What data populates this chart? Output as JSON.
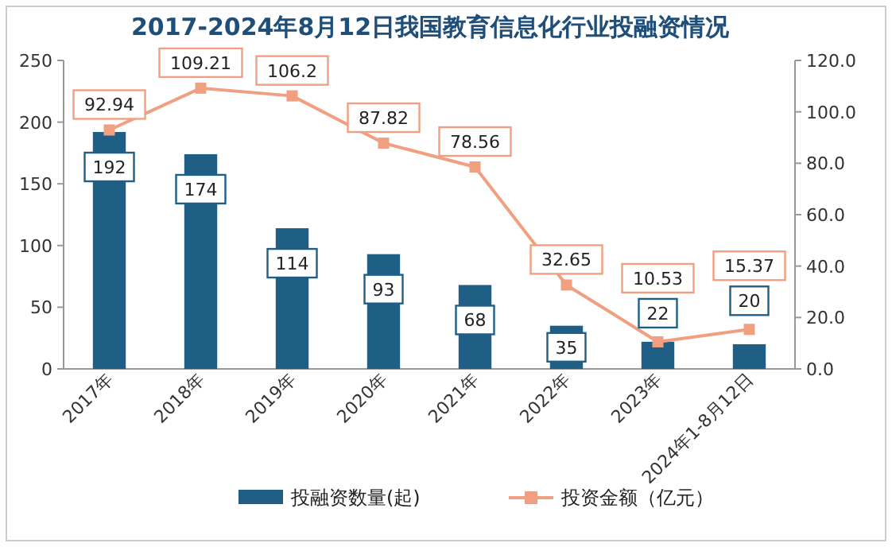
{
  "chart_data": {
    "type": "bar",
    "title": "2017-2024年8月12日我国教育信息化行业投融资情况",
    "categories": [
      "2017年",
      "2018年",
      "2019年",
      "2020年",
      "2021年",
      "2022年",
      "2023年",
      "2024年1-8月12日"
    ],
    "series": [
      {
        "name": "投融资数量(起)",
        "color": "#1f5f86",
        "values": [
          192,
          174,
          114,
          93,
          68,
          35,
          22,
          20
        ]
      },
      {
        "name": "投资金额（亿元）",
        "type": "line",
        "axis": "y2",
        "color": "#f0a080",
        "marker": "square",
        "values": [
          92.94,
          109.21,
          106.2,
          87.82,
          78.56,
          32.65,
          10.53,
          15.37
        ]
      }
    ],
    "ylim": [
      0,
      250
    ],
    "yticks": [
      0,
      50,
      100,
      150,
      200,
      250
    ],
    "y2lim": [
      0,
      120
    ],
    "y2ticks": [
      {
        "value": 0,
        "label": "0.0"
      },
      {
        "value": 20,
        "label": "20.0"
      },
      {
        "value": 40,
        "label": "40.0"
      },
      {
        "value": 60,
        "label": "60.0"
      },
      {
        "value": 80,
        "label": "80.0"
      },
      {
        "value": 100,
        "label": "100.0"
      },
      {
        "value": 120,
        "label": "120.0"
      }
    ],
    "data_labels": true,
    "legend": "bottom",
    "grid": false
  }
}
